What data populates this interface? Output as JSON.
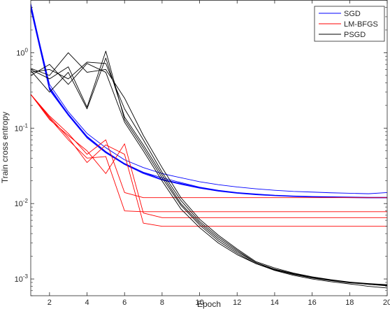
{
  "chart_data": {
    "type": "line",
    "xlabel": "Epoch",
    "ylabel": "Train cross entropy",
    "xlim": [
      1,
      20
    ],
    "ylim": [
      0.0006,
      5
    ],
    "yscale": "log",
    "grid": false,
    "legend_position": "top-right",
    "x_ticks": [
      "2",
      "4",
      "6",
      "8",
      "10",
      "12",
      "14",
      "16",
      "18",
      "20"
    ],
    "y_ticks": [
      {
        "base": "10",
        "exp": "0",
        "value": 1
      },
      {
        "base": "10",
        "exp": "-1",
        "value": 0.1
      },
      {
        "base": "10",
        "exp": "-2",
        "value": 0.01
      },
      {
        "base": "10",
        "exp": "-3",
        "value": 0.001
      }
    ],
    "legend": [
      {
        "name": "SGD",
        "color": "#0000ff"
      },
      {
        "name": "LM-BFGS",
        "color": "#ff0000"
      },
      {
        "name": "PSGD",
        "color": "#000000"
      }
    ],
    "x": [
      1,
      2,
      3,
      4,
      5,
      6,
      7,
      8,
      9,
      10,
      11,
      12,
      13,
      14,
      15,
      16,
      17,
      18,
      19,
      20
    ],
    "series": [
      {
        "group": "SGD",
        "color": "#0000ff",
        "values": [
          4.2,
          0.38,
          0.165,
          0.085,
          0.055,
          0.038,
          0.03,
          0.025,
          0.022,
          0.0195,
          0.0178,
          0.0166,
          0.0157,
          0.015,
          0.0145,
          0.0142,
          0.0139,
          0.0137,
          0.0135,
          0.014
        ]
      },
      {
        "group": "SGD",
        "color": "#0000ff",
        "values": [
          4.5,
          0.34,
          0.155,
          0.078,
          0.049,
          0.034,
          0.026,
          0.022,
          0.019,
          0.0165,
          0.015,
          0.014,
          0.0134,
          0.0129,
          0.0126,
          0.0124,
          0.0123,
          0.0122,
          0.0121,
          0.0121
        ]
      },
      {
        "group": "SGD",
        "color": "#0000ff",
        "values": [
          4.0,
          0.33,
          0.15,
          0.076,
          0.048,
          0.033,
          0.026,
          0.021,
          0.0185,
          0.0163,
          0.0148,
          0.0138,
          0.0132,
          0.0128,
          0.0125,
          0.0123,
          0.0122,
          0.0121,
          0.012,
          0.012
        ]
      },
      {
        "group": "SGD",
        "color": "#0000ff",
        "values": [
          3.8,
          0.32,
          0.148,
          0.074,
          0.047,
          0.033,
          0.025,
          0.0205,
          0.018,
          0.016,
          0.0146,
          0.0137,
          0.0131,
          0.0127,
          0.0124,
          0.0122,
          0.0121,
          0.012,
          0.0119,
          0.0119
        ]
      },
      {
        "group": "SGD",
        "color": "#0000ff",
        "values": [
          4.3,
          0.35,
          0.152,
          0.077,
          0.048,
          0.0335,
          0.0255,
          0.021,
          0.0183,
          0.0162,
          0.0147,
          0.0138,
          0.0132,
          0.0128,
          0.0125,
          0.0123,
          0.0122,
          0.0121,
          0.012,
          0.012
        ]
      },
      {
        "group": "LM-BFGS",
        "color": "#ff0000",
        "values": [
          0.28,
          0.145,
          0.085,
          0.045,
          0.07,
          0.014,
          0.012,
          0.012,
          0.012,
          0.012,
          0.012,
          0.012,
          0.012,
          0.012,
          0.012,
          0.012,
          0.012,
          0.012,
          0.012,
          0.012
        ]
      },
      {
        "group": "LM-BFGS",
        "color": "#ff0000",
        "values": [
          0.28,
          0.135,
          0.07,
          0.04,
          0.042,
          0.008,
          0.0078,
          0.0078,
          0.0078,
          0.0078,
          0.0078,
          0.0078,
          0.0078,
          0.0078,
          0.0078,
          0.0078,
          0.0078,
          0.0078,
          0.0078,
          0.0078
        ]
      },
      {
        "group": "LM-BFGS",
        "color": "#ff0000",
        "values": [
          0.28,
          0.14,
          0.075,
          0.035,
          0.06,
          0.045,
          0.0055,
          0.005,
          0.005,
          0.005,
          0.005,
          0.005,
          0.005,
          0.005,
          0.005,
          0.005,
          0.005,
          0.005,
          0.005,
          0.005
        ]
      },
      {
        "group": "LM-BFGS",
        "color": "#ff0000",
        "values": [
          0.28,
          0.13,
          0.08,
          0.05,
          0.025,
          0.062,
          0.0075,
          0.0065,
          0.0065,
          0.0065,
          0.0065,
          0.0065,
          0.0065,
          0.0065,
          0.0065,
          0.0065,
          0.0065,
          0.0065,
          0.0065,
          0.0065
        ]
      },
      {
        "group": "PSGD",
        "color": "#000000",
        "values": [
          0.6,
          0.45,
          0.65,
          0.19,
          1.05,
          0.13,
          0.055,
          0.022,
          0.0095,
          0.0052,
          0.0032,
          0.0022,
          0.0016,
          0.00132,
          0.00115,
          0.00103,
          0.00095,
          0.00089,
          0.00085,
          0.00082
        ]
      },
      {
        "group": "PSGD",
        "color": "#000000",
        "values": [
          0.55,
          0.6,
          0.45,
          0.75,
          0.72,
          0.18,
          0.07,
          0.026,
          0.011,
          0.0058,
          0.0036,
          0.0024,
          0.00165,
          0.00135,
          0.00118,
          0.00105,
          0.00097,
          0.0009,
          0.00086,
          0.00083
        ]
      },
      {
        "group": "PSGD",
        "color": "#000000",
        "values": [
          0.62,
          0.5,
          1.0,
          0.55,
          0.6,
          0.25,
          0.08,
          0.03,
          0.012,
          0.0062,
          0.0038,
          0.0025,
          0.0017,
          0.0014,
          0.0012,
          0.00107,
          0.00098,
          0.00091,
          0.00087,
          0.00084
        ]
      },
      {
        "group": "PSGD",
        "color": "#000000",
        "values": [
          0.5,
          0.7,
          0.38,
          0.72,
          0.55,
          0.12,
          0.05,
          0.02,
          0.0085,
          0.0048,
          0.003,
          0.0021,
          0.0016,
          0.0013,
          0.00112,
          0.001,
          0.00092,
          0.00086,
          0.0008,
          0.00076
        ]
      },
      {
        "group": "PSGD",
        "color": "#000000",
        "values": [
          0.58,
          0.3,
          0.55,
          0.18,
          0.85,
          0.14,
          0.06,
          0.024,
          0.01,
          0.0055,
          0.0034,
          0.0023,
          0.00165,
          0.00133,
          0.00116,
          0.00104,
          0.00096,
          0.0009,
          0.00085,
          0.00081
        ]
      }
    ]
  }
}
